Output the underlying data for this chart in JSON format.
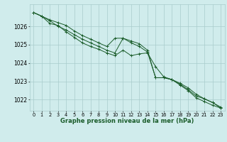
{
  "background_color": "#d0ecec",
  "grid_color": "#a8cccc",
  "line_color": "#1a5c2a",
  "xlabel": "Graphe pression niveau de la mer (hPa)",
  "xlabel_fontsize": 6.0,
  "ylabel_fontsize": 5.5,
  "xtick_fontsize": 4.8,
  "xlim": [
    -0.5,
    23.5
  ],
  "ylim": [
    1021.4,
    1027.2
  ],
  "yticks": [
    1022,
    1023,
    1024,
    1025,
    1026
  ],
  "xticks": [
    0,
    1,
    2,
    3,
    4,
    5,
    6,
    7,
    8,
    9,
    10,
    11,
    12,
    13,
    14,
    15,
    16,
    17,
    18,
    19,
    20,
    21,
    22,
    23
  ],
  "series": [
    [
      1026.75,
      1026.55,
      1026.35,
      1026.2,
      1026.05,
      1025.75,
      1025.5,
      1025.3,
      1025.1,
      1024.9,
      1025.35,
      1025.35,
      1025.1,
      1024.9,
      1024.6,
      1023.2,
      1023.2,
      1023.1,
      1022.8,
      1022.5,
      1022.1,
      1021.9,
      1021.7,
      1021.55
    ],
    [
      1026.75,
      1026.55,
      1026.3,
      1026.0,
      1025.8,
      1025.55,
      1025.3,
      1025.1,
      1024.9,
      1024.7,
      1024.55,
      1025.35,
      1025.2,
      1025.05,
      1024.7,
      1023.2,
      1023.2,
      1023.1,
      1022.85,
      1022.55,
      1022.2,
      1022.05,
      1021.85,
      1021.6
    ],
    [
      1026.75,
      1026.55,
      1026.15,
      1026.05,
      1025.7,
      1025.4,
      1025.1,
      1024.9,
      1024.75,
      1024.55,
      1024.4,
      1024.7,
      1024.4,
      1024.5,
      1024.55,
      1023.8,
      1023.25,
      1023.1,
      1022.9,
      1022.65,
      1022.3,
      1022.05,
      1021.85,
      1021.55
    ]
  ]
}
